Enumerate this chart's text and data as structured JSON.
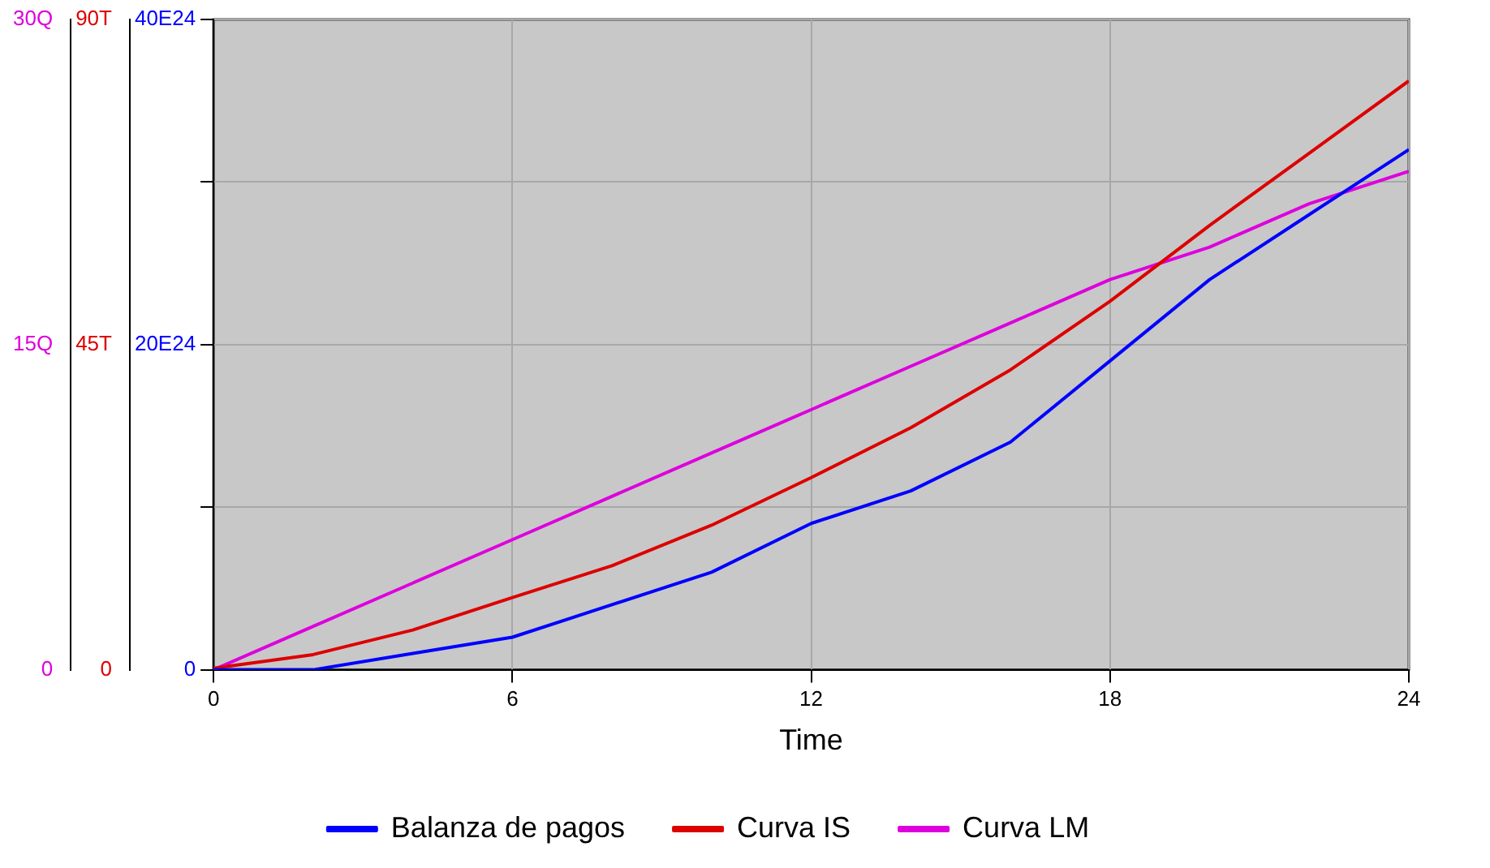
{
  "chart_data": {
    "type": "line",
    "xlabel": "Time",
    "x": [
      0,
      2,
      4,
      6,
      8,
      10,
      12,
      14,
      16,
      18,
      20,
      22,
      24
    ],
    "xlim": [
      0,
      24
    ],
    "xticks": [
      0,
      6,
      12,
      18,
      24
    ],
    "ylim": [
      0,
      4e+25
    ],
    "yticks": [
      {
        "value": 0,
        "label": "0"
      },
      {
        "value": 1e+25,
        "label": null
      },
      {
        "value": 2e+25,
        "label": "20E24"
      },
      {
        "value": 3e+25,
        "label": null
      },
      {
        "value": 4e+25,
        "label": "40E24"
      }
    ],
    "y2lim": [
      0,
      90000000000000.0
    ],
    "y2ticks": [
      {
        "value": 0,
        "label": "0"
      },
      {
        "value": 45000000000000.0,
        "label": "45T"
      },
      {
        "value": 90000000000000.0,
        "label": "90T"
      }
    ],
    "y3lim": [
      0,
      30
    ],
    "y3ticks": [
      {
        "value": 0,
        "label": "0"
      },
      {
        "value": 15,
        "label": "15Q"
      },
      {
        "value": 30,
        "label": "30Q"
      }
    ],
    "grid": true,
    "legend": "bottom",
    "marker": "none",
    "line_style": "solid",
    "series": [
      {
        "name": "Balanza de pagos",
        "color": "#0000ff",
        "values": [
          0,
          0,
          1e+24,
          2e+24,
          4e+24,
          6e+24,
          9e+24,
          1.1e+25,
          1.4e+25,
          1.9e+25,
          2.4e+25,
          2.8e+25,
          3.2e+25
        ]
      },
      {
        "name": "Curva IS",
        "color": "#dd0000",
        "axis": "y2",
        "values": [
          200000000000.0,
          2100000000000.0,
          5500000000000.0,
          10000000000000.0,
          14400000000000.0,
          20000000000000.0,
          26600000000000.0,
          33500000000000.0,
          41500000000000.0,
          51000000000000.0,
          61500000000000.0,
          71500000000000.0,
          81500000000000.0
        ]
      },
      {
        "name": "Curva LM",
        "color": "#dd00dd",
        "axis": "y3",
        "values": [
          0,
          2,
          4,
          6,
          8,
          10,
          12,
          14,
          16,
          18,
          19.5,
          21.5,
          23
        ]
      }
    ]
  }
}
